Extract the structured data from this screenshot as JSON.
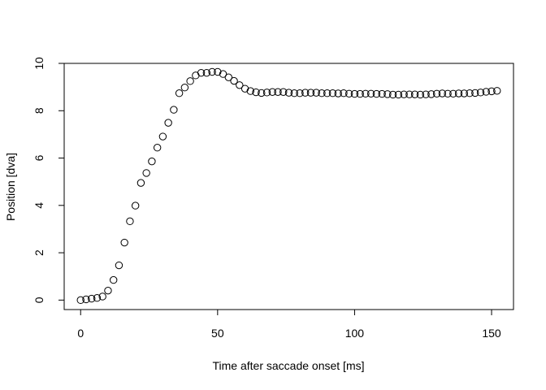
{
  "chart_data": {
    "type": "scatter",
    "title": "",
    "xlabel": "Time after saccade onset [ms]",
    "ylabel": "Position [dva]",
    "xlim": [
      -6,
      158
    ],
    "ylim": [
      -0.4,
      10.0
    ],
    "xticks": [
      0,
      50,
      100,
      150
    ],
    "xtick_labels": [
      "0",
      "50",
      "100",
      "150"
    ],
    "yticks": [
      0,
      2,
      4,
      6,
      8,
      10
    ],
    "ytick_labels": [
      "0",
      "2",
      "4",
      "6",
      "8",
      "10"
    ],
    "grid": false,
    "legend": "none",
    "marker": "open-circle",
    "series": [
      {
        "x": [
          0,
          2,
          4,
          6,
          8,
          10,
          12,
          14,
          16,
          18,
          20,
          22,
          24,
          26,
          28,
          30,
          32,
          34,
          36,
          38,
          40,
          42,
          44,
          46,
          48,
          50,
          52,
          54,
          56,
          58,
          60,
          62,
          64,
          66,
          68,
          70,
          72,
          74,
          76,
          78,
          80,
          82,
          84,
          86,
          88,
          90,
          92,
          94,
          96,
          98,
          100,
          102,
          104,
          106,
          108,
          110,
          112,
          114,
          116,
          118,
          120,
          122,
          124,
          126,
          128,
          130,
          132,
          134,
          136,
          138,
          140,
          142,
          144,
          146,
          148,
          150,
          152
        ],
        "y": [
          0.0,
          0.03,
          0.06,
          0.09,
          0.15,
          0.4,
          0.85,
          1.47,
          2.43,
          3.33,
          3.99,
          4.95,
          5.37,
          5.86,
          6.44,
          6.91,
          7.49,
          8.04,
          8.74,
          8.98,
          9.25,
          9.49,
          9.6,
          9.6,
          9.64,
          9.64,
          9.55,
          9.41,
          9.26,
          9.08,
          8.93,
          8.83,
          8.78,
          8.75,
          8.77,
          8.79,
          8.79,
          8.79,
          8.76,
          8.74,
          8.74,
          8.76,
          8.76,
          8.76,
          8.74,
          8.74,
          8.74,
          8.73,
          8.74,
          8.72,
          8.71,
          8.71,
          8.72,
          8.72,
          8.71,
          8.71,
          8.7,
          8.68,
          8.68,
          8.69,
          8.69,
          8.69,
          8.68,
          8.69,
          8.7,
          8.72,
          8.73,
          8.72,
          8.72,
          8.73,
          8.73,
          8.74,
          8.75,
          8.77,
          8.8,
          8.82,
          8.84
        ]
      }
    ]
  }
}
